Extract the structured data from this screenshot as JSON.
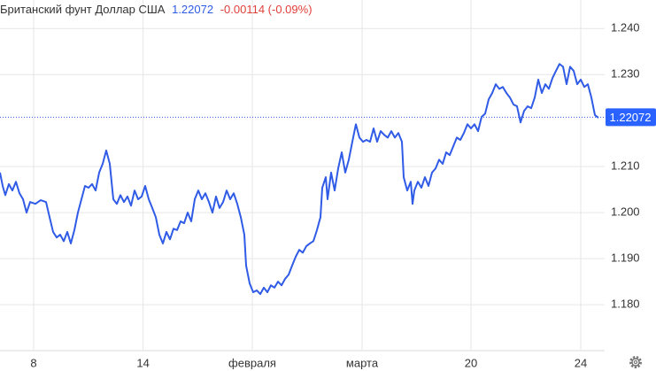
{
  "chart_data": {
    "type": "line",
    "title": "Британский фунт Доллар США",
    "last": {
      "value": 1.22072,
      "label": "1.22072"
    },
    "change": "-0.00114 (-0.09%)",
    "color": "#2f5be6",
    "grid": true,
    "ylim": [
      1.1702,
      1.2462
    ],
    "yticks": [
      {
        "value": 1.24,
        "label": "1.240"
      },
      {
        "value": 1.23,
        "label": "1.230"
      },
      {
        "value": 1.21,
        "label": "1.210"
      },
      {
        "value": 1.2,
        "label": "1.200"
      },
      {
        "value": 1.19,
        "label": "1.190"
      },
      {
        "value": 1.18,
        "label": "1.180"
      }
    ],
    "xlim": [
      0,
      170.75
    ],
    "xticks": [
      {
        "value": 9.5,
        "label": "8"
      },
      {
        "value": 40.4,
        "label": "14"
      },
      {
        "value": 71.25,
        "label": "февраля"
      },
      {
        "value": 102.25,
        "label": "марта"
      },
      {
        "value": 133,
        "label": "20"
      },
      {
        "value": 164,
        "label": "24"
      }
    ],
    "x": [
      0,
      0.75,
      1.5,
      2.5,
      3.5,
      4.5,
      5.5,
      6.5,
      7.5,
      8.5,
      10,
      11.5,
      13,
      14,
      15,
      16,
      17,
      18,
      19,
      20,
      21,
      22,
      23,
      24,
      25,
      26,
      27,
      28,
      29,
      30,
      31,
      32,
      33,
      34,
      35,
      36,
      37,
      38,
      39,
      40,
      41,
      42,
      43,
      44,
      45,
      46,
      47,
      48,
      49,
      50,
      51,
      52,
      53,
      54,
      55,
      56,
      57,
      58,
      59,
      60,
      61,
      62,
      63,
      64,
      65,
      66,
      67,
      68,
      69,
      69.5,
      70.5,
      71.5,
      72.5,
      73.5,
      74.5,
      75.5,
      76.5,
      77.5,
      78.5,
      79.5,
      80.5,
      81.5,
      82.5,
      83.5,
      84.5,
      85.5,
      86.5,
      87.5,
      88.5,
      89.5,
      90.5,
      91,
      92,
      92.5,
      93.5,
      94.5,
      95.5,
      96.5,
      97.5,
      98.5,
      99.5,
      100.5,
      101.5,
      102.5,
      103.5,
      104.5,
      105.5,
      106.5,
      107.5,
      108.5,
      109.5,
      110.5,
      111.5,
      112.5,
      113.5,
      114,
      115,
      116,
      116.5,
      117,
      118,
      119,
      120,
      121,
      122,
      123,
      124,
      125,
      126,
      127,
      128,
      129,
      130,
      131,
      132,
      133,
      134,
      135,
      136,
      137,
      138,
      139,
      140,
      141,
      142,
      143,
      144,
      145,
      146,
      147,
      148,
      149,
      150,
      151,
      152,
      153,
      154,
      155,
      156,
      157,
      158,
      159,
      160,
      161,
      162,
      163,
      164,
      165,
      166,
      167,
      168,
      169
    ],
    "values": [
      1.2087,
      1.2058,
      1.2038,
      1.2062,
      1.2048,
      1.2067,
      1.2042,
      1.2029,
      1.2,
      1.2023,
      1.2019,
      1.2027,
      1.2023,
      1.199,
      1.1958,
      1.1946,
      1.1952,
      1.1938,
      1.1958,
      1.1933,
      1.1962,
      1.2,
      1.2029,
      1.2058,
      1.2054,
      1.2062,
      1.2048,
      1.2087,
      1.2106,
      1.2135,
      1.2106,
      1.2029,
      1.2019,
      1.2038,
      1.2023,
      1.2035,
      1.2015,
      1.2048,
      1.2029,
      1.2035,
      1.2058,
      1.2029,
      1.201,
      1.199,
      1.1952,
      1.1933,
      1.1958,
      1.1942,
      1.1965,
      1.1962,
      1.1981,
      1.1977,
      1.2,
      1.1981,
      1.2029,
      1.2048,
      1.2029,
      1.2042,
      1.2023,
      1.2,
      1.2035,
      1.201,
      1.2023,
      1.2048,
      1.2029,
      1.2042,
      1.2019,
      1.199,
      1.1952,
      1.1885,
      1.1846,
      1.1827,
      1.1831,
      1.1823,
      1.1837,
      1.1827,
      1.1842,
      1.1837,
      1.185,
      1.1842,
      1.1856,
      1.1865,
      1.1885,
      1.1904,
      1.1919,
      1.1913,
      1.1927,
      1.1933,
      1.1938,
      1.1962,
      1.199,
      1.2054,
      1.2077,
      1.2029,
      1.2087,
      1.2048,
      1.2096,
      1.2131,
      1.2087,
      1.2115,
      1.2154,
      1.2192,
      1.2163,
      1.2154,
      1.2158,
      1.2154,
      1.2183,
      1.2154,
      1.2177,
      1.2169,
      1.2163,
      1.2177,
      1.2163,
      1.2173,
      1.2154,
      1.2077,
      1.2048,
      1.2067,
      1.2019,
      1.2048,
      1.2067,
      1.2054,
      1.2077,
      1.2058,
      1.2087,
      1.2096,
      1.2115,
      1.2106,
      1.2131,
      1.2125,
      1.2144,
      1.2163,
      1.2158,
      1.2173,
      1.2192,
      1.2183,
      1.2192,
      1.2177,
      1.2208,
      1.2215,
      1.2246,
      1.226,
      1.2279,
      1.2269,
      1.2273,
      1.226,
      1.225,
      1.2235,
      1.2231,
      1.2196,
      1.2221,
      1.2231,
      1.2227,
      1.225,
      1.2289,
      1.226,
      1.2279,
      1.2269,
      1.2292,
      1.2308,
      1.2323,
      1.2317,
      1.2279,
      1.2317,
      1.2308,
      1.2279,
      1.2289,
      1.2273,
      1.2279,
      1.225,
      1.2212,
      1.2206
    ]
  }
}
